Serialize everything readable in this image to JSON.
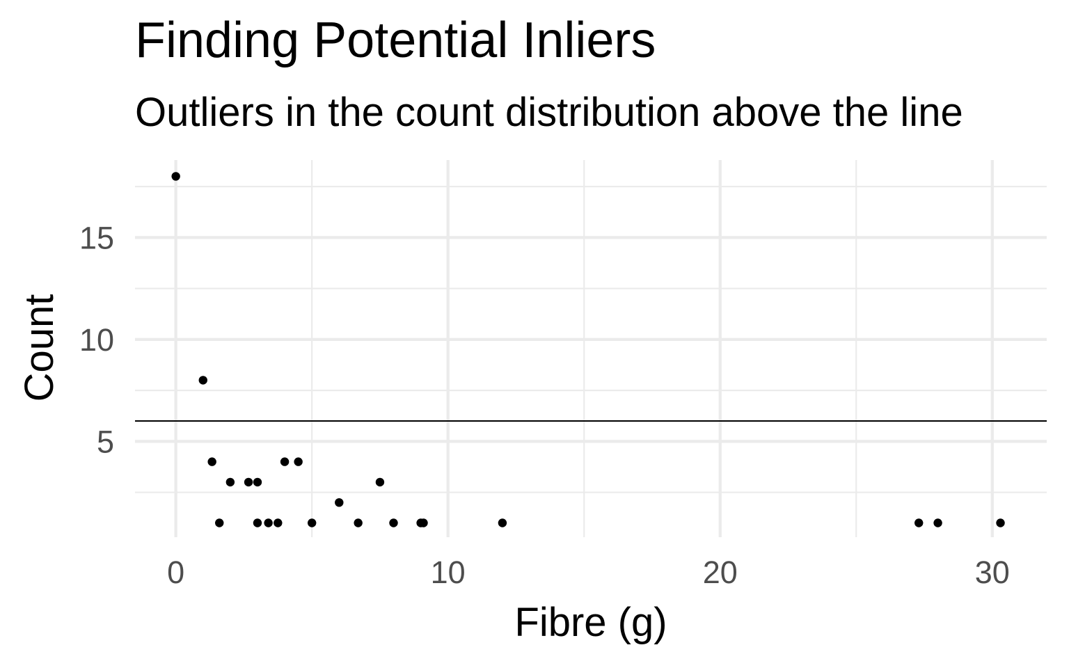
{
  "chart_data": {
    "type": "scatter",
    "title": "Finding Potential Inliers",
    "subtitle": "Outliers in the count distribution above the line",
    "xlabel": "Fibre (g)",
    "ylabel": "Count",
    "xlim": [
      -1.5,
      32
    ],
    "ylim": [
      0.3,
      18.8
    ],
    "x_ticks": [
      0,
      10,
      20,
      30
    ],
    "x_tick_labels": [
      "0",
      "10",
      "20",
      "30"
    ],
    "y_ticks": [
      5,
      10,
      15
    ],
    "y_tick_labels": [
      "5",
      "10",
      "15"
    ],
    "x_minor_ticks": [
      5,
      15,
      25
    ],
    "y_minor_ticks": [
      2.5,
      7.5,
      12.5,
      17.5
    ],
    "grid": true,
    "legend": "none",
    "reference_line": {
      "orientation": "horizontal",
      "y": 6
    },
    "point_color": "#000000",
    "grid_color": "#ebebeb",
    "points": [
      {
        "x": 0,
        "y": 18
      },
      {
        "x": 1,
        "y": 8
      },
      {
        "x": 1.33,
        "y": 4
      },
      {
        "x": 1.6,
        "y": 1
      },
      {
        "x": 2,
        "y": 3
      },
      {
        "x": 2.67,
        "y": 3
      },
      {
        "x": 3,
        "y": 3
      },
      {
        "x": 3,
        "y": 1
      },
      {
        "x": 3.4,
        "y": 1
      },
      {
        "x": 3.75,
        "y": 1
      },
      {
        "x": 4,
        "y": 4
      },
      {
        "x": 4.5,
        "y": 4
      },
      {
        "x": 5,
        "y": 1
      },
      {
        "x": 6,
        "y": 2
      },
      {
        "x": 6.7,
        "y": 1
      },
      {
        "x": 7.5,
        "y": 3
      },
      {
        "x": 8,
        "y": 1
      },
      {
        "x": 9,
        "y": 1
      },
      {
        "x": 9.1,
        "y": 1
      },
      {
        "x": 12,
        "y": 1
      },
      {
        "x": 27.3,
        "y": 1
      },
      {
        "x": 28,
        "y": 1
      },
      {
        "x": 30.3,
        "y": 1
      }
    ]
  }
}
